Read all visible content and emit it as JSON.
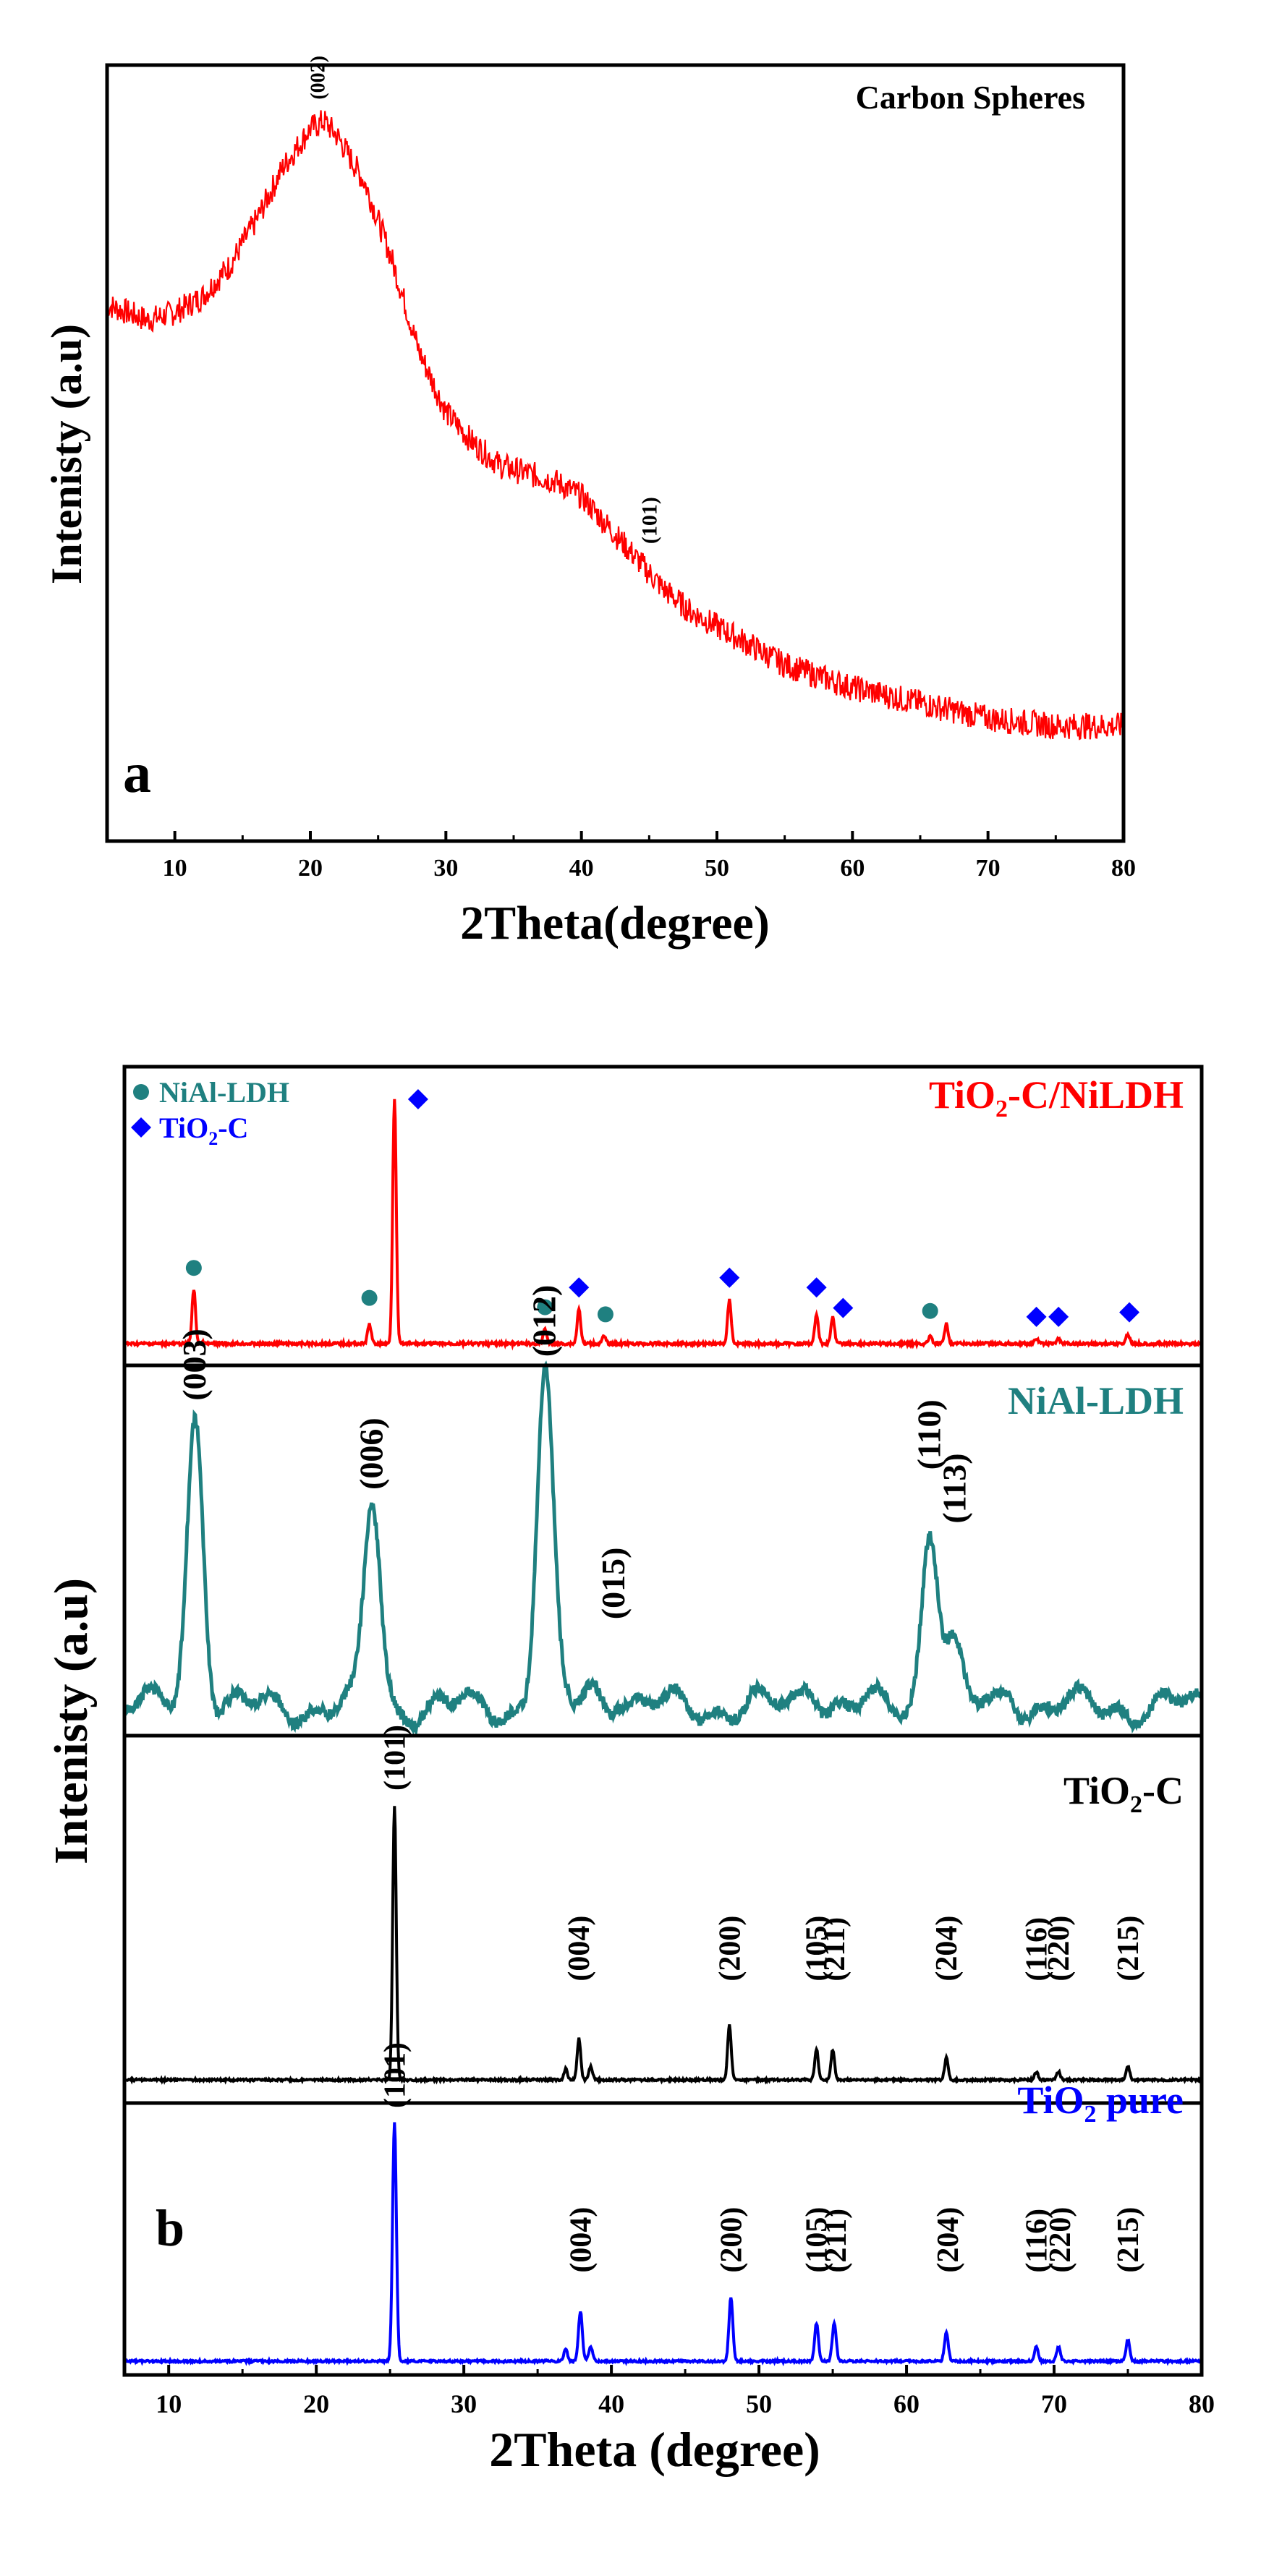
{
  "chart_data": [
    {
      "type": "line",
      "panel_label": "a",
      "title": "Carbon Spheres",
      "xlabel": "2Theta(degree)",
      "ylabel": "Intenisty (a.u)",
      "xlim": [
        5,
        80
      ],
      "ylim": [
        0,
        1
      ],
      "xticks": [
        10,
        20,
        30,
        40,
        50,
        60,
        70,
        80
      ],
      "series": [
        {
          "name": "Carbon Spheres",
          "color": "#ff0000",
          "points": [
            [
              5,
              0.62
            ],
            [
              8,
              0.6
            ],
            [
              10,
              0.61
            ],
            [
              12,
              0.63
            ],
            [
              14,
              0.67
            ],
            [
              16,
              0.73
            ],
            [
              18,
              0.8
            ],
            [
              20,
              0.85
            ],
            [
              21,
              0.86
            ],
            [
              22,
              0.84
            ],
            [
              24,
              0.78
            ],
            [
              26,
              0.68
            ],
            [
              28,
              0.56
            ],
            [
              30,
              0.48
            ],
            [
              32,
              0.44
            ],
            [
              34,
              0.41
            ],
            [
              36,
              0.4
            ],
            [
              38,
              0.39
            ],
            [
              40,
              0.37
            ],
            [
              42,
              0.33
            ],
            [
              44,
              0.29
            ],
            [
              46,
              0.25
            ],
            [
              48,
              0.22
            ],
            [
              50,
              0.2
            ],
            [
              55,
              0.15
            ],
            [
              60,
              0.12
            ],
            [
              65,
              0.1
            ],
            [
              70,
              0.08
            ],
            [
              75,
              0.07
            ],
            [
              80,
              0.07
            ]
          ]
        }
      ],
      "annotations": [
        {
          "text": "(002)",
          "x": 20.5
        },
        {
          "text": "(101)",
          "x": 45
        }
      ]
    },
    {
      "type": "line",
      "panel_label": "b",
      "xlabel": "2Theta (degree)",
      "ylabel": "Intenisty (a.u)",
      "xlim": [
        7,
        80
      ],
      "xticks": [
        10,
        20,
        30,
        40,
        50,
        60,
        70,
        80
      ],
      "legend": [
        {
          "label": "NiAl-LDH",
          "marker": "circle",
          "color": "#1f8080"
        },
        {
          "label": "TiO2-C",
          "marker": "diamond",
          "color": "#0000ff"
        }
      ],
      "series": [
        {
          "name": "TiO2-C/NiLDH",
          "title_main": "TiO",
          "title_sub": "2",
          "title_rest": "-C/NiLDH",
          "color": "#ff0000",
          "peaks": [
            [
              11.7,
              0.22
            ],
            [
              23.6,
              0.08
            ],
            [
              25.3,
              1.0
            ],
            [
              35.5,
              0.06
            ],
            [
              37.8,
              0.14
            ],
            [
              39.5,
              0.03
            ],
            [
              48.0,
              0.18
            ],
            [
              53.9,
              0.12
            ],
            [
              55.0,
              0.11
            ],
            [
              61.6,
              0.03
            ],
            [
              62.7,
              0.08
            ],
            [
              68.8,
              0.02
            ],
            [
              70.3,
              0.02
            ],
            [
              75.0,
              0.04
            ]
          ],
          "markers": [
            {
              "x": 11.7,
              "kind": "circle"
            },
            {
              "x": 23.6,
              "kind": "circle"
            },
            {
              "x": 26.9,
              "kind": "diamond"
            },
            {
              "x": 35.5,
              "kind": "circle"
            },
            {
              "x": 37.8,
              "kind": "diamond"
            },
            {
              "x": 39.6,
              "kind": "circle"
            },
            {
              "x": 48.0,
              "kind": "diamond"
            },
            {
              "x": 53.9,
              "kind": "diamond"
            },
            {
              "x": 55.7,
              "kind": "diamond"
            },
            {
              "x": 61.6,
              "kind": "circle"
            },
            {
              "x": 68.8,
              "kind": "diamond"
            },
            {
              "x": 70.3,
              "kind": "diamond"
            },
            {
              "x": 75.1,
              "kind": "diamond"
            }
          ]
        },
        {
          "name": "NiAl-LDH",
          "title_main": "NiAl-LDH",
          "color": "#1f8080",
          "peaks": [
            [
              11.8,
              0.72
            ],
            [
              23.8,
              0.5
            ],
            [
              35.5,
              0.82
            ],
            [
              38.7,
              0.05
            ],
            [
              40.5,
              0.04
            ],
            [
              53.5,
              0.07
            ],
            [
              61.6,
              0.45
            ],
            [
              63.1,
              0.15
            ],
            [
              67.0,
              0.04
            ]
          ],
          "labels": [
            {
              "text": "(003)",
              "x": 11.8
            },
            {
              "text": "(006)",
              "x": 23.8
            },
            {
              "text": "(012)",
              "x": 35.5
            },
            {
              "text": "(015)",
              "x": 40.2
            },
            {
              "text": "(110)",
              "x": 61.6
            },
            {
              "text": "(113)",
              "x": 63.3
            }
          ]
        },
        {
          "name": "TiO2-C",
          "title_main": "TiO",
          "title_sub": "2",
          "title_rest": "-C",
          "color": "#000000",
          "peaks": [
            [
              25.3,
              1.0
            ],
            [
              36.9,
              0.04
            ],
            [
              37.8,
              0.15
            ],
            [
              38.6,
              0.05
            ],
            [
              48.0,
              0.2
            ],
            [
              53.9,
              0.11
            ],
            [
              55.0,
              0.11
            ],
            [
              62.7,
              0.08
            ],
            [
              68.8,
              0.03
            ],
            [
              70.3,
              0.03
            ],
            [
              75.0,
              0.05
            ]
          ],
          "labels": [
            {
              "text": "(101)",
              "x": 25.3
            },
            {
              "text": "(004)",
              "x": 37.8
            },
            {
              "text": "(200)",
              "x": 48.0
            },
            {
              "text": "(105)",
              "x": 53.9
            },
            {
              "text": "(211)",
              "x": 55.1
            },
            {
              "text": "(204)",
              "x": 62.7
            },
            {
              "text": "(116)",
              "x": 68.8
            },
            {
              "text": "(220)",
              "x": 70.3
            },
            {
              "text": "(215)",
              "x": 75.0
            }
          ]
        },
        {
          "name": "TiO2 pure",
          "title_main": "TiO",
          "title_sub": "2",
          "title_rest": " pure",
          "color": "#0000ff",
          "peaks": [
            [
              25.3,
              1.0
            ],
            [
              36.9,
              0.05
            ],
            [
              37.9,
              0.21
            ],
            [
              38.6,
              0.06
            ],
            [
              48.1,
              0.27
            ],
            [
              53.9,
              0.16
            ],
            [
              55.1,
              0.16
            ],
            [
              62.7,
              0.12
            ],
            [
              68.8,
              0.06
            ],
            [
              70.3,
              0.06
            ],
            [
              75.0,
              0.09
            ]
          ],
          "labels": [
            {
              "text": "(101)",
              "x": 25.3
            },
            {
              "text": "(004)",
              "x": 37.9
            },
            {
              "text": "(200)",
              "x": 48.1
            },
            {
              "text": "(105)",
              "x": 53.9
            },
            {
              "text": "(211)",
              "x": 55.2
            },
            {
              "text": "(204)",
              "x": 62.8
            },
            {
              "text": "(116)",
              "x": 68.8
            },
            {
              "text": "(220)",
              "x": 70.4
            },
            {
              "text": "(215)",
              "x": 75.0
            }
          ]
        }
      ]
    }
  ]
}
